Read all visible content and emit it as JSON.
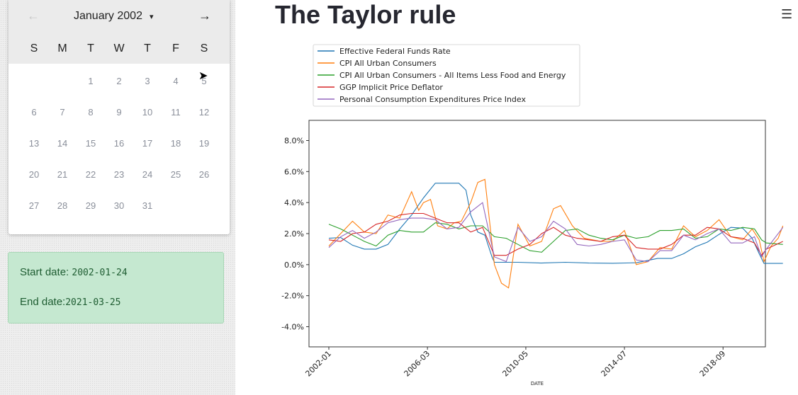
{
  "calendar": {
    "month_label": "January 2002",
    "prev_icon": "←",
    "next_icon": "→",
    "caret_icon": "▾",
    "weekdays": [
      "S",
      "M",
      "T",
      "W",
      "T",
      "F",
      "S"
    ],
    "first_weekday_index": 2,
    "days_in_month": 31
  },
  "dates": {
    "start_label": "Start date: ",
    "start_value": "2002-01-24",
    "end_label": "End date:",
    "end_value": "2021-03-25"
  },
  "page": {
    "title": "The Taylor rule",
    "menu_icon": "☰"
  },
  "chart_data": {
    "type": "line",
    "title": "",
    "xlabel": "DATE",
    "ylabel": "",
    "x_range": [
      2002.0,
      2021.3
    ],
    "x_ticks": [
      {
        "value": 2002.0,
        "label": "2002-01"
      },
      {
        "value": 2006.17,
        "label": "2006-03"
      },
      {
        "value": 2010.33,
        "label": "2010-05"
      },
      {
        "value": 2014.5,
        "label": "2014-07"
      },
      {
        "value": 2018.67,
        "label": "2018-09"
      }
    ],
    "ylim": [
      -5.3,
      9.3
    ],
    "y_ticks": [
      -4,
      -2,
      0,
      2,
      4,
      6,
      8
    ],
    "y_tick_labels": [
      "-4.0%",
      "-2.0%",
      "0.0%",
      "2.0%",
      "4.0%",
      "6.0%",
      "8.0%"
    ],
    "series": [
      {
        "name": "Effective Federal Funds Rate",
        "color": "#1f77b4",
        "x": [
          2002.0,
          2002.5,
          2003.0,
          2003.5,
          2004.0,
          2004.5,
          2005.0,
          2005.5,
          2006.0,
          2006.5,
          2007.0,
          2007.5,
          2007.8,
          2008.0,
          2008.3,
          2008.6,
          2008.9,
          2009.0,
          2010,
          2011,
          2012,
          2013,
          2014,
          2015,
          2015.9,
          2016.5,
          2017.0,
          2017.5,
          2018.0,
          2018.5,
          2019.0,
          2019.5,
          2019.9,
          2020.2,
          2020.4,
          2021.2
        ],
        "y": [
          1.7,
          1.75,
          1.25,
          1.0,
          1.0,
          1.3,
          2.3,
          3.2,
          4.3,
          5.25,
          5.25,
          5.25,
          4.8,
          3.2,
          2.1,
          1.9,
          0.5,
          0.15,
          0.15,
          0.1,
          0.15,
          0.1,
          0.09,
          0.12,
          0.4,
          0.4,
          0.7,
          1.15,
          1.45,
          1.95,
          2.4,
          2.35,
          1.7,
          0.7,
          0.08,
          0.08
        ]
      },
      {
        "name": "CPI All Urban Consumers",
        "color": "#ff7f0e",
        "x": [
          2002.0,
          2002.5,
          2003.0,
          2003.5,
          2004.0,
          2004.5,
          2005.0,
          2005.5,
          2005.8,
          2006.0,
          2006.3,
          2006.6,
          2007.0,
          2007.3,
          2007.6,
          2008.0,
          2008.3,
          2008.6,
          2009.0,
          2009.3,
          2009.6,
          2010.0,
          2010.5,
          2011.0,
          2011.5,
          2011.8,
          2012.3,
          2012.8,
          2013.5,
          2014.0,
          2014.5,
          2015.0,
          2015.5,
          2016.0,
          2016.5,
          2017.0,
          2017.5,
          2018.0,
          2018.5,
          2019.0,
          2019.5,
          2019.9,
          2020.2,
          2020.4,
          2020.7,
          2021.0,
          2021.2
        ],
        "y": [
          1.2,
          2.0,
          2.8,
          2.1,
          2.0,
          3.2,
          3.0,
          4.7,
          3.5,
          4.0,
          4.2,
          2.5,
          2.3,
          2.7,
          2.8,
          4.0,
          5.3,
          5.5,
          0.0,
          -1.2,
          -1.5,
          2.6,
          1.2,
          1.5,
          3.6,
          3.8,
          2.5,
          1.7,
          1.5,
          1.5,
          2.2,
          0.0,
          0.2,
          1.1,
          1.0,
          2.5,
          1.8,
          2.2,
          2.9,
          1.8,
          1.6,
          2.3,
          1.6,
          0.2,
          1.2,
          1.7,
          2.5
        ]
      },
      {
        "name": "CPI All Urban Consumers - All Items Less Food and Energy",
        "color": "#2ca02c",
        "x": [
          2002.0,
          2002.5,
          2003.0,
          2003.5,
          2004.0,
          2004.5,
          2005.0,
          2005.5,
          2006.0,
          2006.5,
          2007.0,
          2007.5,
          2008.0,
          2008.5,
          2009.0,
          2009.5,
          2010.0,
          2010.5,
          2011.0,
          2011.5,
          2012.0,
          2012.5,
          2013.0,
          2013.5,
          2014.0,
          2014.5,
          2015.0,
          2015.5,
          2016.0,
          2016.5,
          2017.0,
          2017.5,
          2018.0,
          2018.5,
          2019.0,
          2019.5,
          2020.0,
          2020.3,
          2020.5,
          2021.2
        ],
        "y": [
          2.6,
          2.3,
          1.9,
          1.5,
          1.2,
          1.9,
          2.2,
          2.1,
          2.1,
          2.7,
          2.6,
          2.3,
          2.5,
          2.5,
          1.8,
          1.7,
          1.3,
          0.9,
          0.8,
          1.5,
          2.2,
          2.3,
          1.9,
          1.7,
          1.6,
          1.9,
          1.7,
          1.8,
          2.2,
          2.2,
          2.3,
          1.7,
          1.8,
          2.3,
          2.2,
          2.4,
          2.3,
          1.6,
          1.4,
          1.3
        ]
      },
      {
        "name": "GGP Implicit Price Deflator",
        "color": "#d62728",
        "x": [
          2002.0,
          2002.5,
          2003.0,
          2003.5,
          2004.0,
          2004.5,
          2005.0,
          2005.5,
          2006.0,
          2006.5,
          2007.0,
          2007.5,
          2008.0,
          2008.5,
          2009.0,
          2009.5,
          2010.0,
          2010.5,
          2011.0,
          2011.5,
          2012.0,
          2012.5,
          2013.0,
          2013.5,
          2014.0,
          2014.5,
          2015.0,
          2015.5,
          2016.0,
          2016.5,
          2017.0,
          2017.5,
          2018.0,
          2018.5,
          2019.0,
          2019.5,
          2020.0,
          2020.3,
          2020.5,
          2021.2
        ],
        "y": [
          1.6,
          1.5,
          2.0,
          2.1,
          2.6,
          2.8,
          3.2,
          3.3,
          3.3,
          3.0,
          2.7,
          2.7,
          2.1,
          2.4,
          0.6,
          0.6,
          1.0,
          1.3,
          2.0,
          2.4,
          1.9,
          1.7,
          1.6,
          1.5,
          1.8,
          1.9,
          1.1,
          1.0,
          1.0,
          1.3,
          1.9,
          1.9,
          2.4,
          2.3,
          1.8,
          1.7,
          1.4,
          0.6,
          1.0,
          1.5
        ]
      },
      {
        "name": "Personal Consumption Expenditures Price Index",
        "color": "#9467bd",
        "x": [
          2002.0,
          2002.5,
          2003.0,
          2003.5,
          2004.0,
          2004.5,
          2005.0,
          2005.5,
          2006.0,
          2006.5,
          2007.0,
          2007.5,
          2008.0,
          2008.5,
          2009.0,
          2009.5,
          2010.0,
          2010.5,
          2011.0,
          2011.5,
          2012.0,
          2012.5,
          2013.0,
          2013.5,
          2014.0,
          2014.5,
          2015.0,
          2015.5,
          2016.0,
          2016.5,
          2017.0,
          2017.5,
          2018.0,
          2018.5,
          2019.0,
          2019.5,
          2020.0,
          2020.3,
          2020.5,
          2021.2
        ],
        "y": [
          1.1,
          1.8,
          2.2,
          1.7,
          2.1,
          2.7,
          2.9,
          3.0,
          3.0,
          2.9,
          2.3,
          2.4,
          3.4,
          4.0,
          0.5,
          0.2,
          2.4,
          1.5,
          1.8,
          2.8,
          2.3,
          1.3,
          1.2,
          1.3,
          1.5,
          1.6,
          0.3,
          0.2,
          0.9,
          0.9,
          1.9,
          1.6,
          2.0,
          2.3,
          1.4,
          1.4,
          1.8,
          0.5,
          1.0,
          2.4
        ]
      }
    ]
  }
}
